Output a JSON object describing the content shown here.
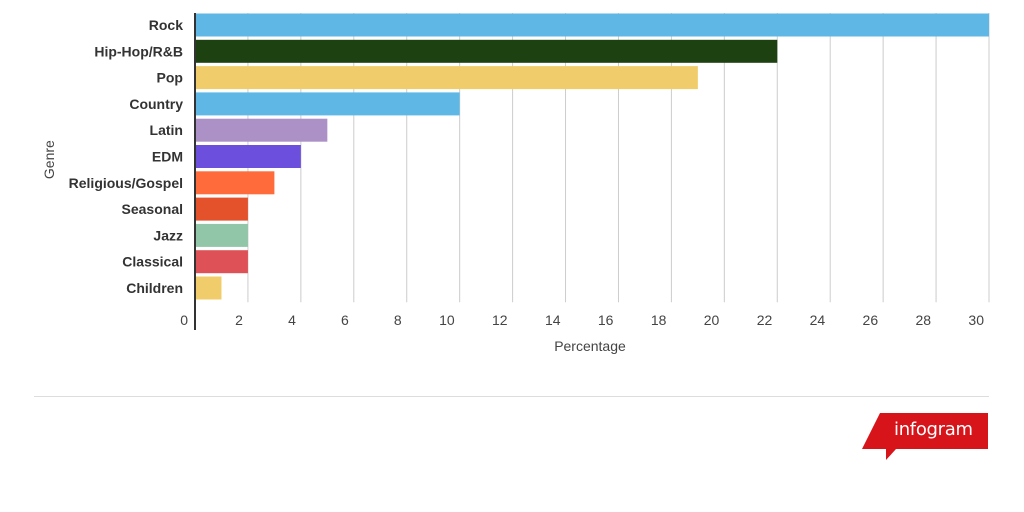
{
  "chart_data": {
    "type": "bar",
    "orientation": "horizontal",
    "categories": [
      "Rock",
      "Hip-Hop/R&B",
      "Pop",
      "Country",
      "Latin",
      "EDM",
      "Religious/Gospel",
      "Seasonal",
      "Jazz",
      "Classical",
      "Children"
    ],
    "values": [
      30,
      22,
      19,
      10,
      5,
      4,
      3,
      2,
      2,
      2,
      1
    ],
    "colors": [
      "#5fb7e6",
      "#1e4111",
      "#f0cd6a",
      "#5fb7e6",
      "#ab91c6",
      "#6c4fdc",
      "#ff6b3a",
      "#e3522b",
      "#92c6a8",
      "#de5157",
      "#f0cd6a"
    ],
    "xlabel": "Percentage",
    "ylabel": "Genre",
    "xlim": [
      0,
      30
    ],
    "xticks": [
      "0",
      "2",
      "4",
      "6",
      "8",
      "10",
      "12",
      "14",
      "16",
      "18",
      "20",
      "22",
      "24",
      "26",
      "28",
      "30"
    ],
    "grid": true,
    "legend": "none"
  },
  "branding": {
    "logo_text": "infogram",
    "logo_color": "#d7141a"
  }
}
